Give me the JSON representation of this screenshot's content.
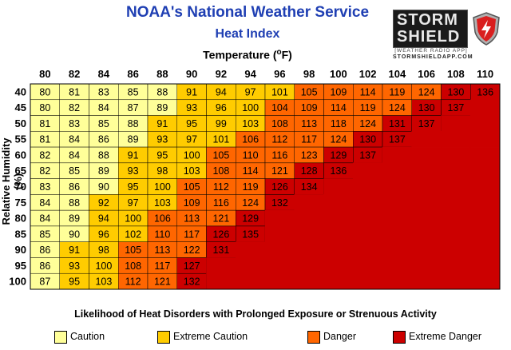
{
  "header": {
    "title": "NOAA's National Weather Service",
    "subtitle": "Heat Index",
    "xlabel_main": "Temperature (",
    "xlabel_sup": "o",
    "xlabel_end": "F)",
    "ylabel": "Relative Humidity (%)"
  },
  "logo": {
    "line1": "STORM",
    "line2": "SHIELD",
    "line3": "[WEATHER RADIO APP]",
    "line4": "STORMSHIELDAPP.COM"
  },
  "footer": {
    "text": "Likelihood of Heat Disorders with Prolonged Exposure or Strenuous Activity"
  },
  "colors": {
    "caution": "#ffff99",
    "extreme_caution": "#ffcc00",
    "danger": "#ff6600",
    "extreme_danger": "#cc0000",
    "grid": "#000000"
  },
  "legend": [
    {
      "label": "Caution",
      "color": "#ffff99"
    },
    {
      "label": "Extreme Caution",
      "color": "#ffcc00"
    },
    {
      "label": "Danger",
      "color": "#ff6600"
    },
    {
      "label": "Extreme Danger",
      "color": "#cc0000"
    }
  ],
  "chart_data": {
    "type": "heatmap",
    "title": "Heat Index",
    "xlabel": "Temperature (oF)",
    "ylabel": "Relative Humidity (%)",
    "x": [
      "80",
      "82",
      "84",
      "86",
      "88",
      "90",
      "92",
      "94",
      "96",
      "98",
      "100",
      "102",
      "104",
      "106",
      "108",
      "110"
    ],
    "y": [
      "40",
      "45",
      "50",
      "55",
      "60",
      "65",
      "70",
      "75",
      "80",
      "85",
      "90",
      "95",
      "100"
    ],
    "values": [
      [
        80,
        81,
        83,
        85,
        88,
        91,
        94,
        97,
        101,
        105,
        109,
        114,
        119,
        124,
        130,
        136
      ],
      [
        80,
        82,
        84,
        87,
        89,
        93,
        96,
        100,
        104,
        109,
        114,
        119,
        124,
        130,
        137,
        null
      ],
      [
        81,
        83,
        85,
        88,
        91,
        95,
        99,
        103,
        108,
        113,
        118,
        124,
        131,
        137,
        null,
        null
      ],
      [
        81,
        84,
        86,
        89,
        93,
        97,
        101,
        106,
        112,
        117,
        124,
        130,
        137,
        null,
        null,
        null
      ],
      [
        82,
        84,
        88,
        91,
        95,
        100,
        105,
        110,
        116,
        123,
        129,
        137,
        null,
        null,
        null,
        null
      ],
      [
        82,
        85,
        89,
        93,
        98,
        103,
        108,
        114,
        121,
        128,
        136,
        null,
        null,
        null,
        null,
        null
      ],
      [
        83,
        86,
        90,
        95,
        100,
        105,
        112,
        119,
        126,
        134,
        null,
        null,
        null,
        null,
        null,
        null
      ],
      [
        84,
        88,
        92,
        97,
        103,
        109,
        116,
        124,
        132,
        null,
        null,
        null,
        null,
        null,
        null,
        null
      ],
      [
        84,
        89,
        94,
        100,
        106,
        113,
        121,
        129,
        null,
        null,
        null,
        null,
        null,
        null,
        null,
        null
      ],
      [
        85,
        90,
        96,
        102,
        110,
        117,
        126,
        135,
        null,
        null,
        null,
        null,
        null,
        null,
        null,
        null
      ],
      [
        86,
        91,
        98,
        105,
        113,
        122,
        131,
        null,
        null,
        null,
        null,
        null,
        null,
        null,
        null,
        null
      ],
      [
        86,
        93,
        100,
        108,
        117,
        127,
        null,
        null,
        null,
        null,
        null,
        null,
        null,
        null,
        null,
        null
      ],
      [
        87,
        95,
        103,
        112,
        121,
        132,
        null,
        null,
        null,
        null,
        null,
        null,
        null,
        null,
        null,
        null
      ]
    ],
    "thresholds": {
      "caution": [
        80,
        90
      ],
      "extreme_caution": [
        91,
        103
      ],
      "danger": [
        104,
        124
      ],
      "extreme_danger": [
        125,
        999
      ]
    }
  }
}
